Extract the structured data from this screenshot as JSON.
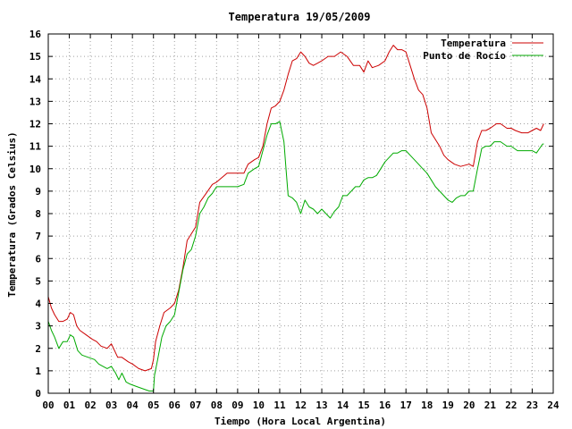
{
  "chart_data": {
    "type": "line",
    "title": "Temperatura 19/05/2009",
    "xlabel": "Tiempo (Hora Local Argentina)",
    "ylabel": "Temperatura (Grados Celsius)",
    "xlim": [
      0,
      24
    ],
    "ylim": [
      0,
      16
    ],
    "grid": true,
    "legend_position": "top-right",
    "x_tick_labels": [
      "00",
      "01",
      "02",
      "03",
      "04",
      "05",
      "06",
      "07",
      "08",
      "09",
      "10",
      "11",
      "12",
      "13",
      "14",
      "15",
      "16",
      "17",
      "18",
      "19",
      "20",
      "21",
      "22",
      "23",
      "24"
    ],
    "y_tick_labels": [
      "0",
      "1",
      "2",
      "3",
      "4",
      "5",
      "6",
      "7",
      "8",
      "9",
      "10",
      "11",
      "12",
      "13",
      "14",
      "15",
      "16"
    ],
    "series": [
      {
        "name": "Temperatura",
        "color": "#cc0000",
        "x": [
          0.0,
          0.15,
          0.3,
          0.5,
          0.7,
          0.9,
          1.05,
          1.2,
          1.35,
          1.5,
          1.8,
          2.1,
          2.3,
          2.5,
          2.8,
          3.0,
          3.15,
          3.3,
          3.5,
          3.8,
          4.0,
          4.3,
          4.6,
          4.9,
          5.0,
          5.1,
          5.3,
          5.5,
          5.8,
          6.0,
          6.2,
          6.4,
          6.6,
          6.8,
          7.0,
          7.2,
          7.5,
          7.8,
          8.0,
          8.5,
          9.0,
          9.3,
          9.5,
          9.8,
          10.0,
          10.2,
          10.4,
          10.6,
          10.8,
          11.0,
          11.2,
          11.4,
          11.6,
          11.8,
          12.0,
          12.2,
          12.4,
          12.6,
          12.8,
          13.0,
          13.3,
          13.6,
          13.9,
          14.2,
          14.5,
          14.8,
          15.0,
          15.2,
          15.4,
          15.7,
          16.0,
          16.2,
          16.4,
          16.6,
          16.8,
          17.0,
          17.2,
          17.4,
          17.6,
          17.8,
          18.0,
          18.2,
          18.4,
          18.6,
          18.8,
          19.0,
          19.3,
          19.6,
          20.0,
          20.2,
          20.4,
          20.6,
          20.8,
          21.0,
          21.3,
          21.5,
          21.8,
          22.0,
          22.2,
          22.5,
          22.8,
          23.0,
          23.2,
          23.4,
          23.55
        ],
        "values": [
          4.3,
          3.8,
          3.5,
          3.2,
          3.2,
          3.3,
          3.6,
          3.5,
          3.0,
          2.8,
          2.6,
          2.4,
          2.3,
          2.1,
          2.0,
          2.2,
          1.9,
          1.6,
          1.6,
          1.4,
          1.3,
          1.1,
          1.0,
          1.1,
          1.5,
          2.3,
          3.0,
          3.6,
          3.8,
          4.0,
          4.6,
          5.6,
          6.8,
          7.1,
          7.4,
          8.5,
          8.9,
          9.3,
          9.4,
          9.8,
          9.8,
          9.8,
          10.2,
          10.4,
          10.5,
          11.0,
          12.0,
          12.7,
          12.8,
          13.0,
          13.5,
          14.2,
          14.8,
          14.9,
          15.2,
          15.0,
          14.7,
          14.6,
          14.7,
          14.8,
          15.0,
          15.0,
          15.2,
          15.0,
          14.6,
          14.6,
          14.3,
          14.8,
          14.5,
          14.6,
          14.8,
          15.2,
          15.5,
          15.3,
          15.3,
          15.2,
          14.6,
          14.0,
          13.5,
          13.3,
          12.7,
          11.6,
          11.3,
          11.0,
          10.6,
          10.4,
          10.2,
          10.1,
          10.2,
          10.1,
          11.2,
          11.7,
          11.7,
          11.8,
          12.0,
          12.0,
          11.8,
          11.8,
          11.7,
          11.6,
          11.6,
          11.7,
          11.8,
          11.7,
          12.0
        ]
      },
      {
        "name": "Punto de Rocío",
        "color": "#00aa00",
        "x": [
          0.0,
          0.15,
          0.3,
          0.5,
          0.7,
          0.9,
          1.05,
          1.2,
          1.4,
          1.6,
          1.9,
          2.2,
          2.4,
          2.6,
          2.8,
          3.0,
          3.2,
          3.35,
          3.5,
          3.7,
          3.9,
          4.2,
          4.5,
          4.8,
          5.0,
          5.05,
          5.2,
          5.4,
          5.6,
          5.8,
          6.0,
          6.2,
          6.4,
          6.6,
          6.8,
          7.0,
          7.2,
          7.4,
          7.6,
          7.8,
          8.0,
          8.5,
          9.0,
          9.3,
          9.5,
          9.8,
          10.0,
          10.2,
          10.4,
          10.6,
          10.8,
          11.0,
          11.2,
          11.3,
          11.4,
          11.6,
          11.8,
          12.0,
          12.2,
          12.4,
          12.6,
          12.8,
          13.0,
          13.2,
          13.4,
          13.6,
          13.8,
          14.0,
          14.2,
          14.4,
          14.6,
          14.8,
          15.0,
          15.2,
          15.4,
          15.6,
          15.8,
          16.0,
          16.2,
          16.4,
          16.6,
          16.8,
          17.0,
          17.2,
          17.4,
          17.6,
          17.8,
          18.0,
          18.2,
          18.4,
          18.6,
          18.8,
          19.0,
          19.2,
          19.4,
          19.6,
          19.8,
          20.0,
          20.2,
          20.4,
          20.6,
          20.8,
          21.0,
          21.2,
          21.5,
          21.8,
          22.0,
          22.3,
          22.6,
          22.8,
          23.0,
          23.2,
          23.35,
          23.5,
          23.55
        ],
        "values": [
          3.2,
          2.8,
          2.5,
          2.0,
          2.3,
          2.3,
          2.6,
          2.5,
          1.9,
          1.7,
          1.6,
          1.5,
          1.3,
          1.2,
          1.1,
          1.2,
          0.9,
          0.6,
          0.9,
          0.5,
          0.4,
          0.3,
          0.2,
          0.1,
          0.1,
          0.8,
          1.5,
          2.5,
          3.0,
          3.2,
          3.5,
          4.5,
          5.5,
          6.2,
          6.4,
          7.0,
          8.0,
          8.3,
          8.7,
          8.9,
          9.2,
          9.2,
          9.2,
          9.3,
          9.8,
          10.0,
          10.1,
          10.8,
          11.5,
          12.0,
          12.0,
          12.1,
          11.2,
          10.0,
          8.8,
          8.7,
          8.5,
          8.0,
          8.6,
          8.3,
          8.2,
          8.0,
          8.2,
          8.0,
          7.8,
          8.1,
          8.3,
          8.8,
          8.8,
          9.0,
          9.2,
          9.2,
          9.5,
          9.6,
          9.6,
          9.7,
          10.0,
          10.3,
          10.5,
          10.7,
          10.7,
          10.8,
          10.8,
          10.6,
          10.4,
          10.2,
          10.0,
          9.8,
          9.5,
          9.2,
          9.0,
          8.8,
          8.6,
          8.5,
          8.7,
          8.8,
          8.8,
          9.0,
          9.0,
          10.0,
          10.9,
          11.0,
          11.0,
          11.2,
          11.2,
          11.0,
          11.0,
          10.8,
          10.8,
          10.8,
          10.8,
          10.7,
          10.9,
          11.1,
          11.1
        ]
      }
    ]
  }
}
